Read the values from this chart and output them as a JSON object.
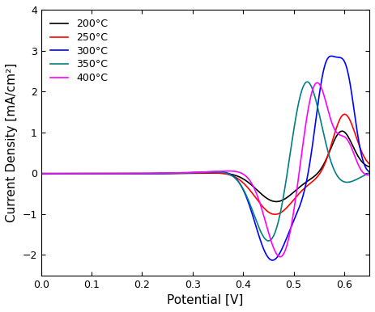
{
  "title": "",
  "xlabel": "Potential [V]",
  "ylabel": "Current Density [mA/cm²]",
  "xlim": [
    0.0,
    0.65
  ],
  "ylim": [
    -2.5,
    4.0
  ],
  "xticks": [
    0.0,
    0.1,
    0.2,
    0.3,
    0.4,
    0.5,
    0.6
  ],
  "yticks": [
    -2,
    -1,
    0,
    1,
    2,
    3,
    4
  ],
  "legend_labels": [
    "200°C",
    "250°C",
    "300°C",
    "350°C",
    "400°C"
  ],
  "legend_colors": [
    "#000000",
    "#ff0000",
    "#0000ff",
    "#008080",
    "#ff00ff"
  ],
  "background_color": "#ffffff",
  "figsize": [
    4.63,
    3.86
  ],
  "dpi": 100
}
